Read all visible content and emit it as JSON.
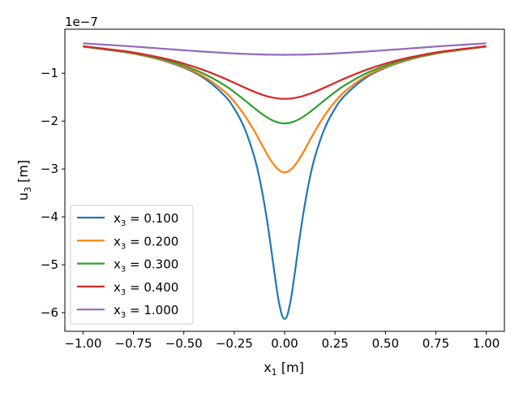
{
  "chart_data": {
    "type": "line",
    "title": "",
    "xlabel": "x1 [m]",
    "xlabel_main": "x",
    "xlabel_sub": "1",
    "xlabel_unit": " [m]",
    "ylabel_main": "u",
    "ylabel_sub": "3",
    "ylabel_unit": " [m]",
    "y_offset_label": "1e−7",
    "xlim": [
      -1.09,
      1.09
    ],
    "ylim": [
      -6.39,
      -0.08
    ],
    "grid": false,
    "legend_position": "lower-left",
    "x_ticks": [
      -1.0,
      -0.75,
      -0.5,
      -0.25,
      0.0,
      0.25,
      0.5,
      0.75,
      1.0
    ],
    "x_tick_labels": [
      "−1.00",
      "−0.75",
      "−0.50",
      "−0.25",
      "0.00",
      "0.25",
      "0.50",
      "0.75",
      "1.00"
    ],
    "y_ticks": [
      -1,
      -2,
      -3,
      -4,
      -5,
      -6
    ],
    "y_tick_labels": [
      "−1",
      "−2",
      "−3",
      "−4",
      "−5",
      "−6"
    ],
    "x": [
      -1.0,
      -0.8,
      -0.7,
      -0.6,
      -0.5,
      -0.4,
      -0.3,
      -0.25,
      -0.2,
      -0.1515,
      -0.1212,
      -0.0909,
      -0.0707,
      -0.0505,
      -0.0303,
      -0.0101,
      0.0101,
      0.0303,
      0.0505,
      0.0707,
      0.0909,
      0.1212,
      0.1515,
      0.2,
      0.25,
      0.3,
      0.4,
      0.5,
      0.6,
      0.7,
      0.8,
      1.0
    ],
    "series": [
      {
        "name": "x3 = 0.100",
        "label_main": "x",
        "label_sub": "3",
        "label_rest": " = 0.100",
        "color": "#1f77b4",
        "values": [
          -0.444,
          -0.554,
          -0.633,
          -0.738,
          -0.884,
          -1.101,
          -1.458,
          -1.736,
          -2.138,
          -2.73,
          -3.263,
          -3.973,
          -4.549,
          -5.17,
          -5.736,
          -6.088,
          -6.088,
          -5.736,
          -5.17,
          -4.549,
          -3.973,
          -3.263,
          -2.73,
          -2.138,
          -1.736,
          -1.458,
          -1.101,
          -0.884,
          -0.738,
          -0.633,
          -0.554,
          -0.444
        ]
      },
      {
        "name": "x3 = 0.200",
        "label_main": "x",
        "label_sub": "3",
        "label_rest": " = 0.200",
        "color": "#ff7f0e",
        "values": [
          -0.442,
          -0.551,
          -0.628,
          -0.729,
          -0.868,
          -1.069,
          -1.376,
          -1.594,
          -1.87,
          -2.199,
          -2.429,
          -2.661,
          -2.804,
          -2.925,
          -3.015,
          -3.062,
          -3.062,
          -3.015,
          -2.925,
          -2.804,
          -2.661,
          -2.429,
          -2.199,
          -1.87,
          -1.594,
          -1.376,
          -1.069,
          -0.868,
          -0.729,
          -0.628,
          -0.551,
          -0.442
        ]
      },
      {
        "name": "x3 = 0.300",
        "label_main": "x",
        "label_sub": "3",
        "label_rest": " = 0.300",
        "color": "#2ca02c",
        "values": [
          -0.439,
          -0.544,
          -0.618,
          -0.713,
          -0.839,
          -1.01,
          -1.246,
          -1.393,
          -1.557,
          -1.723,
          -1.823,
          -1.912,
          -1.962,
          -2.002,
          -2.029,
          -2.044,
          -2.044,
          -2.029,
          -2.002,
          -1.962,
          -1.912,
          -1.823,
          -1.723,
          -1.557,
          -1.393,
          -1.246,
          -1.01,
          -0.839,
          -0.713,
          -0.618,
          -0.544,
          -0.439
        ]
      },
      {
        "name": "x3 = 0.400",
        "label_main": "x",
        "label_sub": "3",
        "label_rest": " = 0.400",
        "color": "#d62728",
        "values": [
          -0.434,
          -0.534,
          -0.603,
          -0.688,
          -0.797,
          -0.935,
          -1.105,
          -1.2,
          -1.296,
          -1.385,
          -1.434,
          -1.476,
          -1.498,
          -1.515,
          -1.527,
          -1.533,
          -1.533,
          -1.527,
          -1.515,
          -1.498,
          -1.476,
          -1.434,
          -1.385,
          -1.296,
          -1.2,
          -1.105,
          -0.935,
          -0.797,
          -0.688,
          -0.603,
          -0.534,
          -0.434
        ]
      },
      {
        "name": "x3 = 1.000",
        "label_main": "x",
        "label_sub": "3",
        "label_rest": " = 1.000",
        "color": "#9467bd",
        "values": [
          -0.374,
          -0.427,
          -0.457,
          -0.488,
          -0.518,
          -0.548,
          -0.574,
          -0.586,
          -0.595,
          -0.603,
          -0.607,
          -0.61,
          -0.611,
          -0.612,
          -0.613,
          -0.614,
          -0.614,
          -0.613,
          -0.612,
          -0.611,
          -0.61,
          -0.607,
          -0.603,
          -0.595,
          -0.586,
          -0.574,
          -0.548,
          -0.518,
          -0.488,
          -0.457,
          -0.427,
          -0.374
        ]
      }
    ]
  }
}
